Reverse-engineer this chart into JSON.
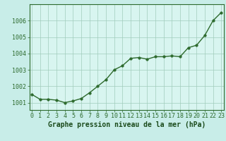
{
  "x": [
    0,
    1,
    2,
    3,
    4,
    5,
    6,
    7,
    8,
    9,
    10,
    11,
    12,
    13,
    14,
    15,
    16,
    17,
    18,
    19,
    20,
    21,
    22,
    23
  ],
  "y": [
    1001.5,
    1001.2,
    1001.2,
    1001.15,
    1001.0,
    1001.1,
    1001.25,
    1001.6,
    1002.0,
    1002.4,
    1003.0,
    1003.25,
    1003.7,
    1003.75,
    1003.65,
    1003.8,
    1003.8,
    1003.85,
    1003.8,
    1004.35,
    1004.5,
    1005.1,
    1006.0,
    1006.5
  ],
  "line_color": "#2d6a2d",
  "marker": "o",
  "marker_size": 2.5,
  "bg_plot": "#d8f5f0",
  "bg_fig": "#c8ede8",
  "grid_color": "#a0ccbb",
  "xlabel": "Graphe pression niveau de la mer (hPa)",
  "xlabel_fontsize": 7,
  "ytick_labels": [
    "1001",
    "1002",
    "1003",
    "1004",
    "1005",
    "1006"
  ],
  "ytick_values": [
    1001,
    1002,
    1003,
    1004,
    1005,
    1006
  ],
  "xtick_values": [
    0,
    1,
    2,
    3,
    4,
    5,
    6,
    7,
    8,
    9,
    10,
    11,
    12,
    13,
    14,
    15,
    16,
    17,
    18,
    19,
    20,
    21,
    22,
    23
  ],
  "ylim": [
    1000.55,
    1007.0
  ],
  "xlim": [
    -0.3,
    23.3
  ],
  "tick_fontsize": 6,
  "line_width": 1.0
}
